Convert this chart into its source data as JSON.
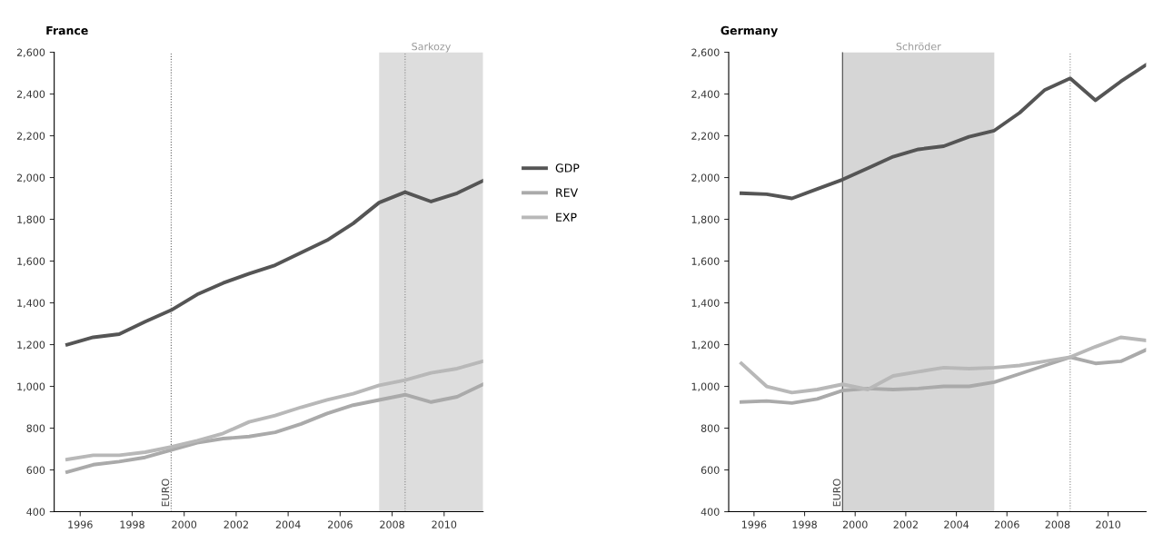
{
  "chart_data": [
    {
      "type": "line",
      "title": "France",
      "x": [
        1995.5,
        1996.5,
        1997.5,
        1998.5,
        1999.5,
        2000.5,
        2001.5,
        2002.5,
        2003.5,
        2004.5,
        2005.5,
        2006.5,
        2007.5,
        2008.5,
        2009.5,
        2010.5,
        2011.5
      ],
      "series": [
        {
          "name": "GDP",
          "color": "#555555",
          "values": [
            1200,
            1235,
            1250,
            1310,
            1365,
            1440,
            1495,
            1540,
            1580,
            1640,
            1700,
            1780,
            1880,
            1930,
            1885,
            1925,
            1985
          ]
        },
        {
          "name": "REV",
          "color": "#aaaaaa",
          "values": [
            590,
            625,
            640,
            660,
            695,
            730,
            750,
            760,
            780,
            820,
            870,
            910,
            935,
            960,
            925,
            950,
            1010
          ]
        },
        {
          "name": "EXP",
          "color": "#b8b8b8",
          "values": [
            650,
            670,
            670,
            685,
            710,
            740,
            775,
            830,
            860,
            900,
            935,
            965,
            1005,
            1030,
            1065,
            1085,
            1120
          ]
        }
      ],
      "xlim": [
        1995,
        2011.5
      ],
      "xticks": [
        1996,
        1998,
        2000,
        2002,
        2004,
        2006,
        2008,
        2010
      ],
      "ylim": [
        400,
        2600
      ],
      "yticks": [
        {
          "value": 400,
          "label": "400"
        },
        {
          "value": 600,
          "label": "600"
        },
        {
          "value": 800,
          "label": "800"
        },
        {
          "value": 1000,
          "label": "1,000"
        },
        {
          "value": 1200,
          "label": "1,200"
        },
        {
          "value": 1400,
          "label": "1,400"
        },
        {
          "value": 1600,
          "label": "1,600"
        },
        {
          "value": 1800,
          "label": "1,800"
        },
        {
          "value": 2000,
          "label": "2,000"
        },
        {
          "value": 2200,
          "label": "2,200"
        },
        {
          "value": 2400,
          "label": "2,400"
        },
        {
          "value": 2600,
          "label": "2,600"
        }
      ],
      "ref_lines": [
        {
          "axis": "x",
          "value": 1999.5,
          "label": "EURO",
          "color": "#666666",
          "line_style": "dotted"
        },
        {
          "axis": "x",
          "value": 2008.5,
          "color": "#888888",
          "line_style": "dotted"
        }
      ],
      "bands": [
        {
          "axis": "x",
          "from": 2007.5,
          "to": 2011.5,
          "label": "Sarkozy",
          "color": "#dddddd"
        }
      ],
      "grid": false,
      "legend": "right",
      "line_style": "solid",
      "marker": "none"
    },
    {
      "type": "line",
      "title": "Germany",
      "x": [
        1995.5,
        1996.5,
        1997.5,
        1998.5,
        1999.5,
        2000.5,
        2001.5,
        2002.5,
        2003.5,
        2004.5,
        2005.5,
        2006.5,
        2007.5,
        2008.5,
        2009.5,
        2010.5,
        2011.5
      ],
      "series": [
        {
          "color": "#555555",
          "values": [
            1925,
            1920,
            1900,
            1945,
            1990,
            2045,
            2100,
            2135,
            2150,
            2195,
            2225,
            2310,
            2420,
            2475,
            2370,
            2460,
            2540
          ]
        },
        {
          "color": "#aaaaaa",
          "values": [
            925,
            930,
            920,
            940,
            980,
            990,
            985,
            990,
            1000,
            1000,
            1020,
            1060,
            1100,
            1140,
            1110,
            1120,
            1175
          ]
        },
        {
          "color": "#b8b8b8",
          "values": [
            1110,
            1000,
            970,
            985,
            1010,
            985,
            1050,
            1070,
            1090,
            1085,
            1090,
            1100,
            1120,
            1140,
            1190,
            1235,
            1220
          ]
        }
      ],
      "xlim": [
        1995,
        2011.5
      ],
      "xticks": [
        1996,
        1998,
        2000,
        2002,
        2004,
        2006,
        2008,
        2010
      ],
      "ylim": [
        400,
        2600
      ],
      "yticks": [
        {
          "value": 400,
          "label": "400"
        },
        {
          "value": 600,
          "label": "600"
        },
        {
          "value": 800,
          "label": "800"
        },
        {
          "value": 1000,
          "label": "1,000"
        },
        {
          "value": 1200,
          "label": "1,200"
        },
        {
          "value": 1400,
          "label": "1,400"
        },
        {
          "value": 1600,
          "label": "1,600"
        },
        {
          "value": 1800,
          "label": "1,800"
        },
        {
          "value": 2000,
          "label": "2,000"
        },
        {
          "value": 2200,
          "label": "2,200"
        },
        {
          "value": 2400,
          "label": "2,400"
        },
        {
          "value": 2600,
          "label": "2,600"
        }
      ],
      "ref_lines": [
        {
          "axis": "x",
          "value": 1999.5,
          "label": "EURO",
          "color": "#444444",
          "line_style": "solid"
        },
        {
          "axis": "x",
          "value": 2008.5,
          "color": "#888888",
          "line_style": "dotted"
        }
      ],
      "bands": [
        {
          "axis": "x",
          "from": 1999.5,
          "to": 2005.5,
          "label": "Schröder",
          "color": "#d6d6d6"
        }
      ],
      "grid": false,
      "line_style": "solid",
      "marker": "none"
    }
  ]
}
